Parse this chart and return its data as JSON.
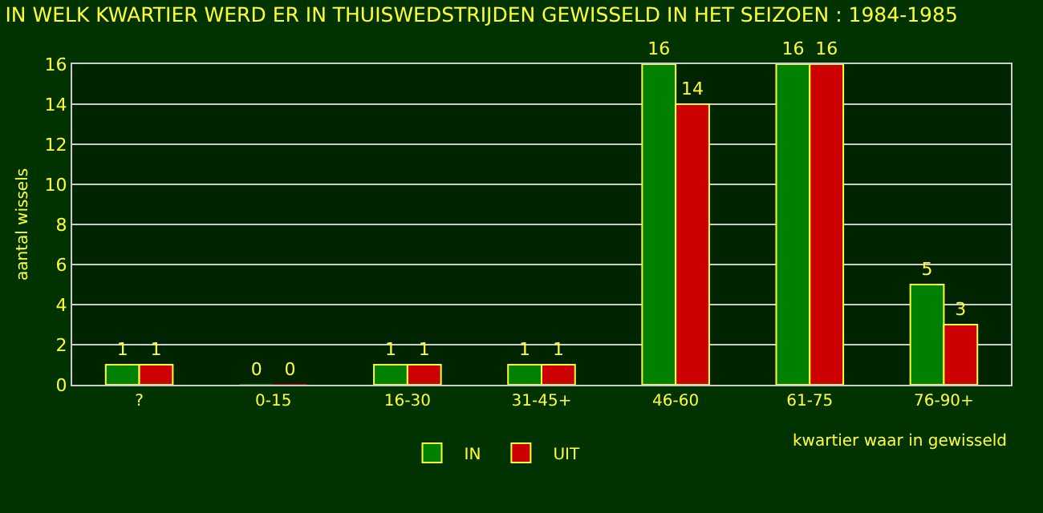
{
  "chart_data": {
    "type": "bar",
    "title": "IN WELK KWARTIER WERD ER IN THUISWEDSTRIJDEN GEWISSELD IN HET SEIZOEN : 1984-1985",
    "xlabel": "kwartier waar in gewisseld",
    "ylabel": "aantal wissels",
    "categories": [
      "?",
      "0-15",
      "16-30",
      "31-45+",
      "46-60",
      "61-75",
      "76-90+"
    ],
    "series": [
      {
        "name": "IN",
        "color": "#008000",
        "values": [
          1,
          0,
          1,
          1,
          16,
          16,
          5
        ]
      },
      {
        "name": "UIT",
        "color": "#cc0000",
        "values": [
          1,
          0,
          1,
          1,
          14,
          16,
          3
        ]
      }
    ],
    "ylim": [
      0,
      16
    ],
    "yticks": [
      0,
      2,
      4,
      6,
      8,
      10,
      12,
      14,
      16
    ],
    "grid": "y",
    "legend": "bottom",
    "data_labels": true
  }
}
